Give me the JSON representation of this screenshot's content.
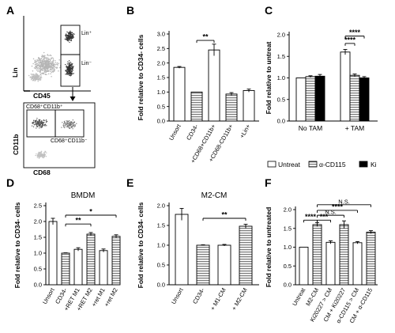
{
  "panel_labels": [
    "A",
    "B",
    "C",
    "D",
    "E",
    "F"
  ],
  "flow": {
    "top": {
      "xlabel": "CD45",
      "ylabel": "Lin",
      "gate_upper": "Lin⁺",
      "gate_lower": "Lin⁻"
    },
    "bottom": {
      "xlabel": "CD68",
      "ylabel": "CD11b",
      "gate_left": "CD68⁺CD11b⁺",
      "gate_right": "CD68⁺CD11b⁻"
    }
  },
  "legend_c": [
    {
      "label": "Untreat",
      "fill": "white"
    },
    {
      "label": "α-CD115",
      "fill": "stripe"
    },
    {
      "label": "Ki",
      "fill": "black"
    }
  ],
  "chart_data": [
    {
      "panel": "B",
      "type": "bar",
      "title": "",
      "ylabel": "Fold relative to CD34- cells",
      "ylim": [
        0,
        3.0
      ],
      "ystep": 0.5,
      "categories": [
        "Unsort",
        "CD34-",
        "+CD68+CD11b+",
        "+CD68-CD11b+",
        "+Lin+"
      ],
      "values": [
        1.85,
        1.0,
        2.45,
        0.93,
        1.05
      ],
      "errors": [
        0.03,
        0.0,
        0.2,
        0.05,
        0.05
      ],
      "fills": [
        "white",
        "stripe",
        "white",
        "stripe",
        "white"
      ],
      "significance": [
        {
          "from": 1,
          "to": 2,
          "label": "**",
          "y": 2.78
        }
      ]
    },
    {
      "panel": "C",
      "type": "bar",
      "title": "",
      "ylabel": "Fold relative to untreat",
      "ylim": [
        0,
        2.0
      ],
      "ystep": 0.5,
      "groups": [
        "No TAM",
        "+ TAM"
      ],
      "series": [
        {
          "name": "Untreat",
          "values": [
            1.0,
            1.6
          ],
          "errors": [
            0.0,
            0.06
          ]
        },
        {
          "name": "α-CD115",
          "values": [
            1.03,
            1.06
          ],
          "errors": [
            0.02,
            0.03
          ]
        },
        {
          "name": "Ki",
          "values": [
            1.04,
            1.0
          ],
          "errors": [
            0.04,
            0.03
          ]
        }
      ],
      "significance": [
        {
          "from": [
            1,
            0
          ],
          "to": [
            1,
            1
          ],
          "label": "****",
          "y": 1.8
        },
        {
          "from": [
            1,
            0
          ],
          "to": [
            1,
            2
          ],
          "label": "****",
          "y": 1.97
        }
      ]
    },
    {
      "panel": "D",
      "type": "bar",
      "title": "BMDM",
      "ylabel": "Fold relative to CD34- cells",
      "ylim": [
        0,
        2.5
      ],
      "ystep": 0.5,
      "categories": [
        "Unsort",
        "CD34-",
        "+RET M1",
        "+RET M2",
        "+ret M1",
        "+ret M2"
      ],
      "values": [
        2.0,
        1.0,
        1.12,
        1.6,
        1.08,
        1.53
      ],
      "errors": [
        0.1,
        0.01,
        0.05,
        0.05,
        0.05,
        0.05
      ],
      "fills": [
        "white",
        "stripe",
        "white",
        "stripe",
        "white",
        "stripe"
      ],
      "significance": [
        {
          "from": 1,
          "to": 3,
          "label": "**",
          "y": 1.92
        },
        {
          "from": 1,
          "to": 5,
          "label": "*",
          "y": 2.2
        }
      ]
    },
    {
      "panel": "E",
      "type": "bar",
      "title": "M2-CM",
      "ylabel": "Fold relative to CD34- cells",
      "ylim": [
        0,
        2.0
      ],
      "ystep": 0.5,
      "categories": [
        "Unsort",
        "CD34-",
        "+ M1-CM",
        "+ M2-CM"
      ],
      "values": [
        1.78,
        1.0,
        1.0,
        1.48
      ],
      "errors": [
        0.15,
        0.01,
        0.02,
        0.05
      ],
      "fills": [
        "white",
        "stripe",
        "white",
        "stripe"
      ],
      "significance": [
        {
          "from": 1,
          "to": 3,
          "label": "**",
          "y": 1.68
        }
      ]
    },
    {
      "panel": "F",
      "type": "bar",
      "title": "",
      "ylabel": "Fold relative to untreated",
      "ylim": [
        0,
        2.0
      ],
      "ystep": 0.5,
      "categories": [
        "Untreat",
        "M2-CM",
        "Ki20227 > CM",
        "CM + Ki20227",
        "α-CD115 > CM",
        "CM + α-CD115"
      ],
      "values": [
        1.0,
        1.6,
        1.13,
        1.6,
        1.12,
        1.4
      ],
      "errors": [
        0.0,
        0.05,
        0.04,
        0.1,
        0.03,
        0.04
      ],
      "fills": [
        "white",
        "stripe",
        "white",
        "stripe",
        "white",
        "stripe"
      ],
      "significance": [
        {
          "from": 0,
          "to": 1,
          "label": "****",
          "y": 1.72
        },
        {
          "from": 1,
          "to": 2,
          "label": "***",
          "y": 1.72
        },
        {
          "from": 1,
          "to": 3,
          "label": "N.S.",
          "y": 1.85
        },
        {
          "from": 1,
          "to": 4,
          "label": "****",
          "y": 1.98
        },
        {
          "from": 1,
          "to": 5,
          "label": "N.S.",
          "y": 2.13
        }
      ]
    }
  ]
}
